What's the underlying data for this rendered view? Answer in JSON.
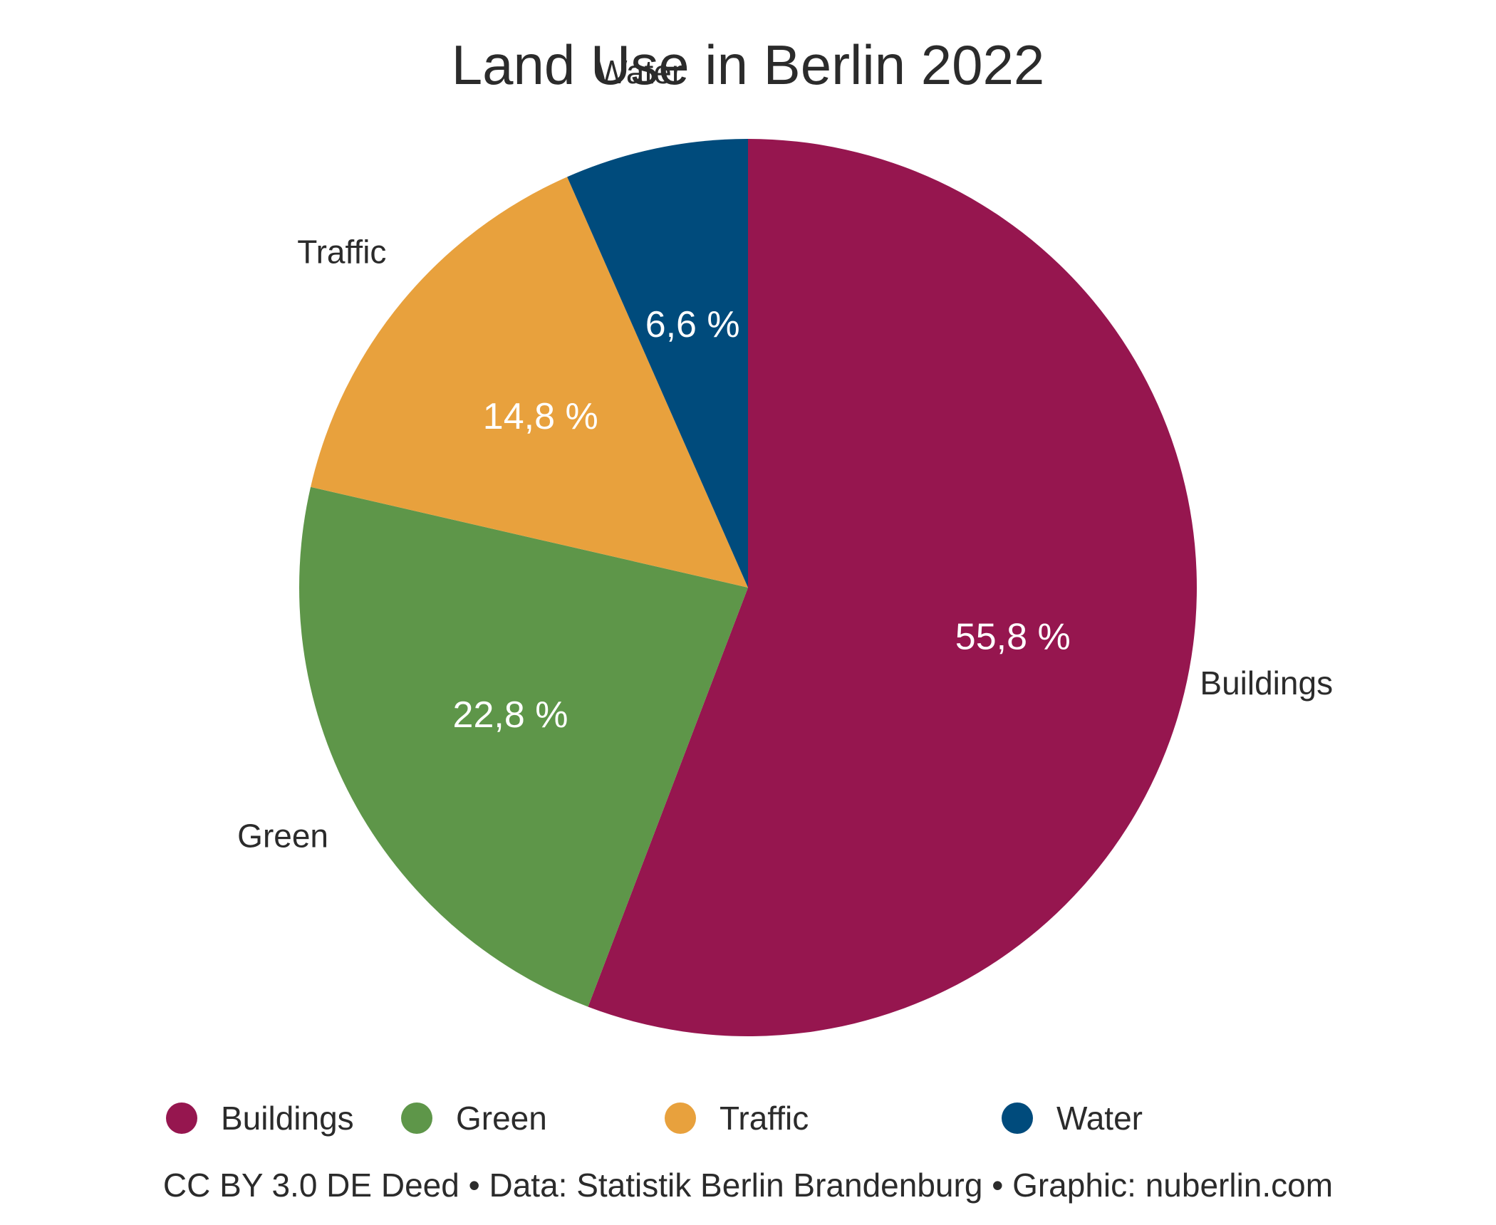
{
  "chart_data": {
    "type": "pie",
    "title": "Land Use in Berlin 2022",
    "categories": [
      "Buildings",
      "Green",
      "Traffic",
      "Water"
    ],
    "values": [
      55.8,
      22.8,
      14.8,
      6.6
    ],
    "value_labels": [
      "55,8 %",
      "22,8 %",
      "14,8 %",
      "6,6 %"
    ],
    "colors": [
      "#96164f",
      "#5e9649",
      "#e8a13d",
      "#004b7c"
    ],
    "start": "12 o'clock",
    "direction": "clockwise",
    "legend": {
      "placement": "bottom",
      "entries": [
        "Buildings",
        "Green",
        "Traffic",
        "Water"
      ]
    },
    "footer": "CC BY 3.0 DE Deed • Data: Statistik Berlin Brandenburg • Graphic: nuberlin.com"
  }
}
